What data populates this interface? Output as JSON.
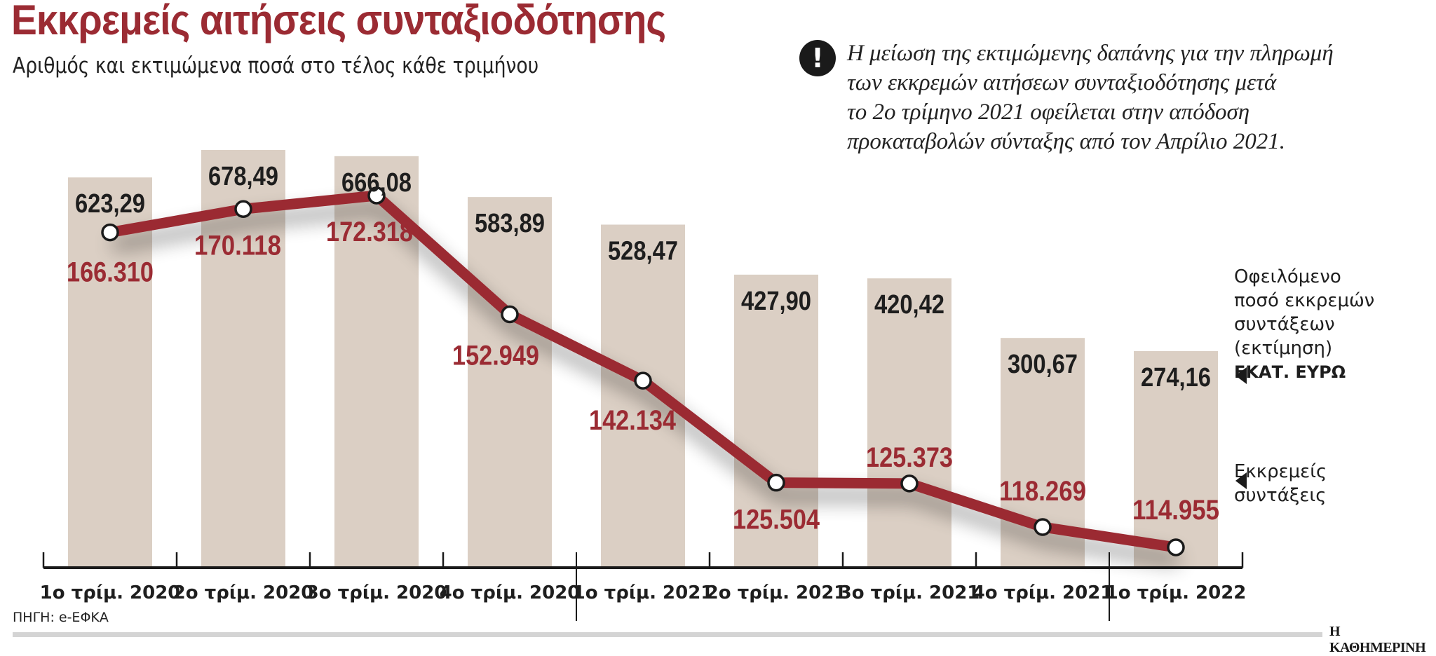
{
  "header": {
    "title": "Εκκρεμείς αιτήσεις συνταξιοδότησης",
    "subtitle": "Αριθμός και εκτιμώμενα ποσά στο τέλος κάθε τριμήνου"
  },
  "note": {
    "icon": "exclamation-icon",
    "icon_glyph": "!",
    "lines": [
      "Η μείωση της εκτιμώμενης δαπάνης για την πληρωμή",
      "των εκκρεμών αιτήσεων συνταξιοδότησης μετά",
      "το 2ο τρίμηνο 2021 οφείλεται στην απόδοση",
      "προκαταβολών σύνταξης από τον Απρίλιο 2021."
    ]
  },
  "legend": {
    "bars": {
      "lines": [
        "Οφειλόμενο",
        "ποσό εκκρεμών",
        "συντάξεων",
        "(εκτίμηση)"
      ],
      "unit": "ΕΚΑΤ. ΕΥΡΩ"
    },
    "line": {
      "lines": [
        "Εκκρεμείς",
        "συντάξεις"
      ]
    }
  },
  "source": "ΠΗΓΗ: e-ΕΦΚΑ",
  "brand": "Η ΚΑΘΗΜΕΡΙΝΗ",
  "colors": {
    "title": "#9b2b33",
    "bar": "#dbcfc4",
    "line": "#9b2b33",
    "bar_label": "#1e1e1e",
    "line_label": "#9b2b33"
  },
  "chart_data": {
    "type": "bar+line",
    "title": "Εκκρεμείς αιτήσεις συνταξιοδότησης",
    "subtitle": "Αριθμός και εκτιμώμενα ποσά στο τέλος κάθε τριμήνου",
    "categories": [
      "1ο τρίμ. 2020",
      "2ο τρίμ. 2020",
      "3ο τρίμ. 2020",
      "4ο τρίμ. 2020",
      "1ο τρίμ. 2021",
      "2ο τρίμ. 2021",
      "3ο τρίμ. 2021",
      "4ο τρίμ. 2021",
      "1ο τρίμ. 2022"
    ],
    "series": [
      {
        "name": "Οφειλόμενο ποσό εκκρεμών συντάξεων (εκτίμηση), ΕΚΑΤ. ΕΥΡΩ",
        "type": "bar",
        "values": [
          623.29,
          678.49,
          666.08,
          583.89,
          528.47,
          427.9,
          420.42,
          300.67,
          274.16
        ],
        "labels": [
          "623,29",
          "678,49",
          "666,08",
          "583,89",
          "528,47",
          "427,90",
          "420,42",
          "300,67",
          "274,16"
        ]
      },
      {
        "name": "Εκκρεμείς συντάξεις",
        "type": "line",
        "values": [
          166310,
          170118,
          172318,
          152949,
          142134,
          125504,
          125373,
          118269,
          114955
        ],
        "labels": [
          "166.310",
          "170.118",
          "172.318",
          "152.949",
          "142.134",
          "125.504",
          "125.373",
          "118.269",
          "114.955"
        ]
      }
    ],
    "xlabel": "",
    "ylabel": "",
    "grid": false,
    "legend_position": "right",
    "annotations": [
      "Η μείωση της εκτιμώμενης δαπάνης για την πληρωμή των εκκρεμών αιτήσεων συνταξιοδότησης μετά το 2ο τρίμηνο 2021 οφείλεται στην απόδοση προκαταβολών σύνταξης από τον Απρίλιο 2021."
    ],
    "source": "ΠΗΓΗ: e-ΕΦΚΑ"
  }
}
